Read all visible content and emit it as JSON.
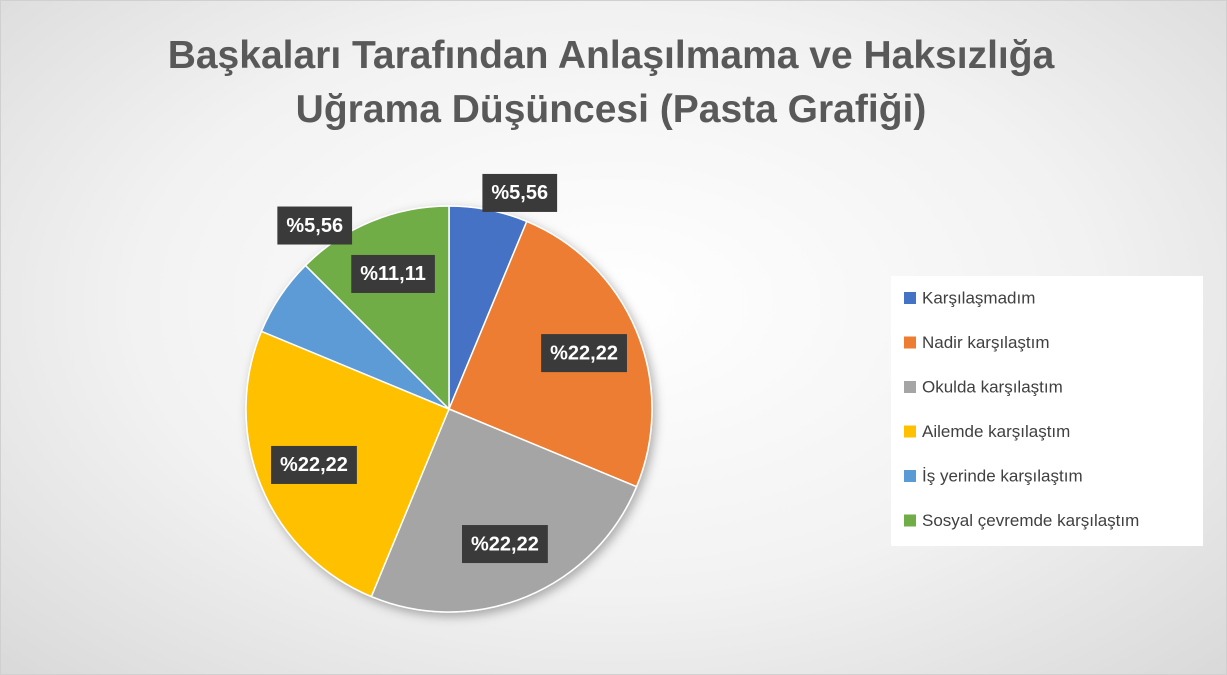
{
  "chart_data": {
    "type": "pie",
    "title": "Başkaları Tarafından Anlaşılmama ve Haksızlığa Uğrama Düşüncesi (Pasta Grafiği)",
    "categories": [
      "Karşılaşmadım",
      "Nadir karşılaştım",
      "Okulda karşılaştım",
      "Ailemde karşılaştım",
      "İş yerinde karşılaştım",
      "Sosyal çevremde karşılaştım"
    ],
    "values": [
      5.56,
      22.22,
      22.22,
      22.22,
      5.56,
      11.11
    ],
    "value_labels": [
      "%5,56",
      "%22,22",
      "%22,22",
      "%22,22",
      "%5,56",
      "%11,11"
    ],
    "colors": [
      "#4472c4",
      "#ed7d31",
      "#a5a5a5",
      "#ffc000",
      "#5b9bd5",
      "#70ad47"
    ],
    "legend": "right"
  }
}
